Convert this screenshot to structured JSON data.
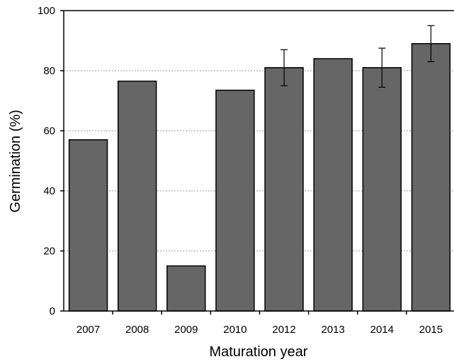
{
  "chart_data": {
    "type": "bar",
    "title": "",
    "xlabel": "Maturation year",
    "ylabel": "Germination (%)",
    "categories": [
      "2007",
      "2008",
      "2009",
      "2010",
      "2012",
      "2013",
      "2014",
      "2015"
    ],
    "values": [
      57,
      76.5,
      15,
      73.5,
      81,
      84,
      81,
      89
    ],
    "error_bars": [
      null,
      null,
      null,
      null,
      6,
      null,
      6.5,
      6
    ],
    "ylim": [
      0,
      100
    ],
    "yticks": [
      0,
      20,
      40,
      60,
      80,
      100
    ],
    "grid": "horizontal dotted",
    "legend": "none",
    "bar_color": "#666666",
    "bar_edge_color": "#000000"
  }
}
